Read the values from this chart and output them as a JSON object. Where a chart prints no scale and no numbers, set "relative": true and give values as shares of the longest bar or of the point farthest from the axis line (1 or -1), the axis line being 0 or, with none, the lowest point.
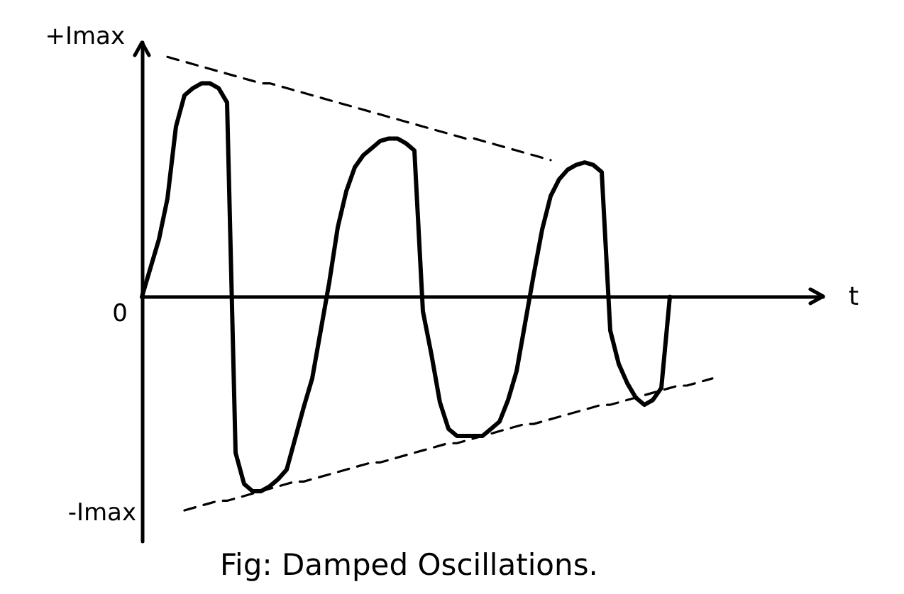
{
  "chart_data": {
    "type": "line",
    "relative": true,
    "title": "Fig: Damped Oscillations.",
    "xlabel": "t",
    "categories": [
      null,
      null,
      null,
      null,
      null,
      null,
      null,
      null,
      null,
      null,
      null,
      null,
      null,
      null,
      null,
      null,
      null,
      null,
      null,
      null,
      null,
      null,
      null,
      null,
      null,
      null,
      null,
      null,
      null,
      null,
      null,
      null,
      null,
      null,
      null,
      null,
      null,
      null,
      null,
      null,
      null,
      null,
      null,
      null,
      null,
      null,
      null,
      null,
      null,
      null,
      null,
      null,
      null,
      null,
      null,
      null,
      null,
      null,
      null,
      null,
      null,
      null,
      null,
      null,
      null,
      null,
      null,
      null,
      null,
      null,
      null,
      null,
      null,
      null,
      null,
      null,
      null,
      null,
      null,
      null,
      null
    ],
    "series": [
      {
        "color": "#000000",
        "values": [
          0,
          0.12,
          0.24,
          0.41,
          0.71,
          0.84,
          0.87,
          0.89,
          0.89,
          0.87,
          0.81,
          -0.65,
          -0.78,
          -0.81,
          -0.81,
          -0.79,
          -0.76,
          -0.72,
          -0.59,
          -0.46,
          -0.34,
          -0.14,
          0.06,
          0.29,
          0.44,
          0.54,
          0.59,
          0.62,
          0.65,
          0.66,
          0.66,
          0.64,
          0.61,
          -0.06,
          -0.24,
          -0.44,
          -0.55,
          -0.58,
          -0.58,
          -0.58,
          -0.58,
          -0.55,
          -0.52,
          -0.43,
          -0.31,
          -0.11,
          0.09,
          0.28,
          0.42,
          0.49,
          0.53,
          0.55,
          0.56,
          0.55,
          0.52,
          -0.14,
          -0.28,
          -0.36,
          -0.42,
          -0.45,
          -0.43,
          -0.38,
          0,
          null,
          null,
          null,
          null,
          null,
          null,
          null,
          null,
          null,
          null,
          null,
          null,
          null,
          null,
          null,
          null,
          null,
          null
        ]
      },
      {
        "color": "#000000",
        "line_style": "dashed",
        "values": [
          null,
          null,
          null,
          1.0,
          0.99,
          0.98,
          0.97,
          0.96,
          0.95,
          0.94,
          0.93,
          0.92,
          0.91,
          0.9,
          0.89,
          0.89,
          0.88,
          0.87,
          0.86,
          0.85,
          0.84,
          0.83,
          0.82,
          0.81,
          0.8,
          0.79,
          0.78,
          0.77,
          0.76,
          0.75,
          0.74,
          0.73,
          0.72,
          0.71,
          0.7,
          0.69,
          0.68,
          0.67,
          0.66,
          0.66,
          0.65,
          0.64,
          0.63,
          0.62,
          0.61,
          0.6,
          0.59,
          0.58,
          0.57,
          null,
          null,
          null,
          null,
          null,
          null,
          null,
          null,
          null,
          null,
          null,
          null,
          null,
          null,
          null,
          null,
          null,
          null,
          null,
          null,
          null,
          null,
          null,
          null,
          null,
          null,
          null,
          null,
          null,
          null,
          null,
          null
        ]
      },
      {
        "color": "#000000",
        "line_style": "dashed",
        "values": [
          null,
          null,
          null,
          null,
          null,
          -0.89,
          -0.88,
          -0.87,
          -0.86,
          -0.85,
          -0.85,
          -0.84,
          -0.83,
          -0.82,
          -0.81,
          -0.8,
          -0.79,
          -0.78,
          -0.77,
          -0.77,
          -0.76,
          -0.75,
          -0.74,
          -0.73,
          -0.72,
          -0.71,
          -0.7,
          -0.69,
          -0.69,
          -0.68,
          -0.67,
          -0.66,
          -0.65,
          -0.64,
          -0.63,
          -0.62,
          -0.61,
          -0.61,
          -0.6,
          -0.59,
          -0.58,
          -0.57,
          -0.56,
          -0.55,
          -0.54,
          -0.53,
          -0.53,
          -0.52,
          -0.51,
          -0.5,
          -0.49,
          -0.48,
          -0.47,
          -0.46,
          -0.45,
          -0.45,
          -0.44,
          -0.43,
          -0.42,
          -0.41,
          -0.4,
          -0.39,
          -0.38,
          -0.37,
          -0.37,
          -0.36,
          -0.35,
          -0.34,
          null,
          null,
          null,
          null,
          null,
          null,
          null,
          null,
          null,
          null,
          null,
          null,
          null
        ]
      }
    ],
    "annotations": [
      "+Imax",
      "0",
      "-Imax"
    ],
    "grid": false,
    "marker": "none",
    "line_style": "solid"
  }
}
